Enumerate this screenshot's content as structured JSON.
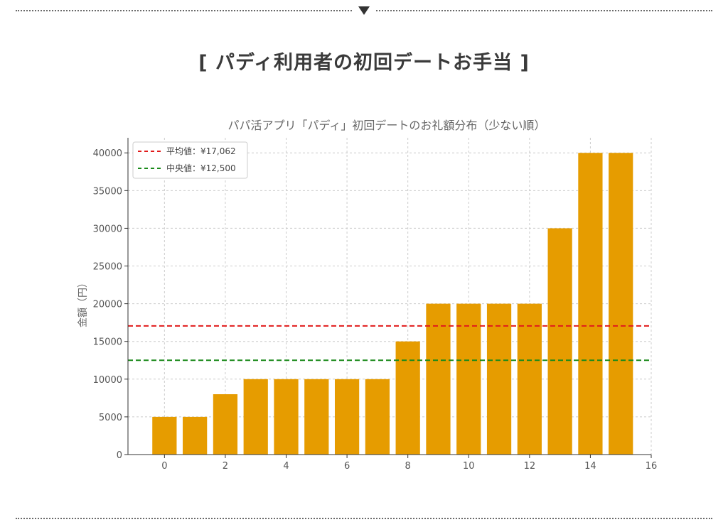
{
  "heading": "[ パディ利用者の初回デートお手当 ]",
  "colors": {
    "bar": "#e69c00",
    "mean_line": "#e11b1b",
    "median_line": "#1a8a1a",
    "grid": "#cccccc",
    "heading_text": "#3a3a3a",
    "divider": "#6a6a6a"
  },
  "chart_data": {
    "type": "bar",
    "title": "パパ活アプリ「パディ」初回デートのお礼額分布（少ない順）",
    "xlabel": "",
    "ylabel": "金額（円）",
    "x": [
      0,
      1,
      2,
      3,
      4,
      5,
      6,
      7,
      8,
      9,
      10,
      11,
      12,
      13,
      14,
      15
    ],
    "values": [
      5000,
      5000,
      8000,
      10000,
      10000,
      10000,
      10000,
      10000,
      15000,
      20000,
      20000,
      20000,
      20000,
      30000,
      40000,
      40000
    ],
    "xlim": [
      -1.2,
      16
    ],
    "ylim": [
      0,
      42000
    ],
    "xticks": [
      0,
      2,
      4,
      6,
      8,
      10,
      12,
      14,
      16
    ],
    "yticks": [
      0,
      5000,
      10000,
      15000,
      20000,
      25000,
      30000,
      35000,
      40000
    ],
    "grid": true,
    "reference_lines": [
      {
        "name": "平均値：¥17,062",
        "value": 17062,
        "style": "dashed",
        "color": "#e11b1b"
      },
      {
        "name": "中央値：¥12,500",
        "value": 12500,
        "style": "dashed",
        "color": "#1a8a1a"
      }
    ],
    "legend_position": "upper-left"
  }
}
